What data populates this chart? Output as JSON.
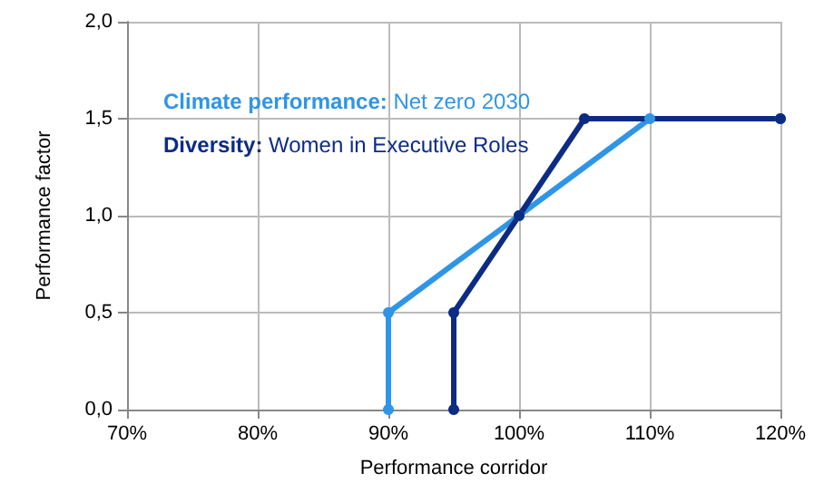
{
  "chart_data": {
    "type": "line",
    "xlabel": "Performance corridor",
    "ylabel": "Performance factor",
    "series": [
      {
        "name": "Climate performance: Net zero 2030",
        "color": "#2f95e6",
        "x": [
          90,
          90,
          100,
          110,
          120
        ],
        "values": [
          0,
          0.5,
          1,
          1.5,
          1.5
        ]
      },
      {
        "name": "Diversity: Women in Executive Roles",
        "color": "#0c2c84",
        "x": [
          95,
          95,
          100,
          105,
          120
        ],
        "values": [
          0,
          0.5,
          1,
          1.5,
          1.5
        ]
      }
    ],
    "xlim": [
      70,
      120
    ],
    "xticks": [
      {
        "value": 70,
        "label": "70%"
      },
      {
        "value": 80,
        "label": "80%"
      },
      {
        "value": 90,
        "label": "90%"
      },
      {
        "value": 100,
        "label": "100%"
      },
      {
        "value": 110,
        "label": "110%"
      },
      {
        "value": 120,
        "label": "120%"
      }
    ],
    "ylim": [
      0,
      2
    ],
    "yticks": [
      {
        "value": 0,
        "label": "0,0"
      },
      {
        "value": 0.5,
        "label": "0,5"
      },
      {
        "value": 1,
        "label": "1,0"
      },
      {
        "value": 1.5,
        "label": "1,5"
      },
      {
        "value": 2,
        "label": "2,0"
      }
    ],
    "grid": true,
    "legend": "top left",
    "marker": "circle",
    "line_style": "solid"
  }
}
